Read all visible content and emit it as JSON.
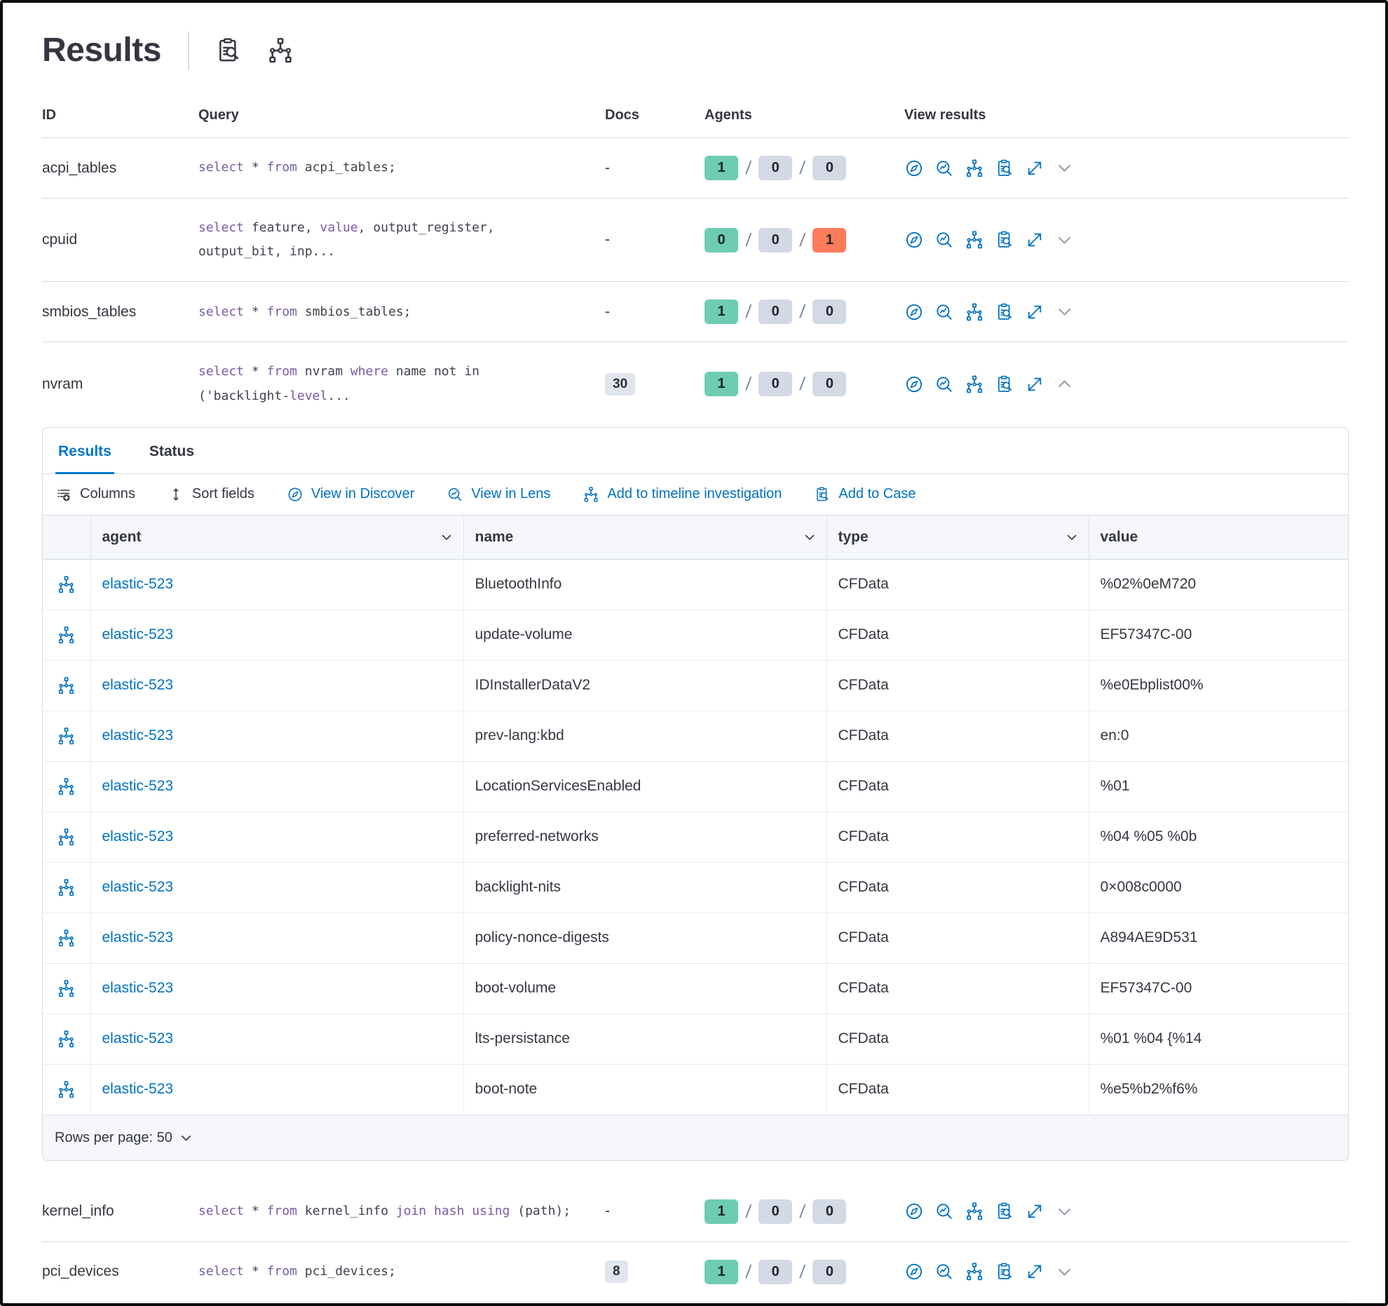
{
  "title": "Results",
  "table": {
    "headers": {
      "id": "ID",
      "query": "Query",
      "docs": "Docs",
      "agents": "Agents",
      "view": "View results"
    },
    "rows": [
      {
        "id": "acpi_tables",
        "docs": "-",
        "docs_is_badge": false,
        "agents": [
          {
            "v": "1",
            "c": "success"
          },
          {
            "v": "0",
            "c": "neutral"
          },
          {
            "v": "0",
            "c": "neutral"
          }
        ],
        "tokens": [
          {
            "k": 1,
            "s": "select"
          },
          {
            "s": " * "
          },
          {
            "k": 1,
            "s": "from"
          },
          {
            "s": " acpi_tables;"
          }
        ]
      },
      {
        "id": "cpuid",
        "docs": "-",
        "docs_is_badge": false,
        "agents": [
          {
            "v": "0",
            "c": "success"
          },
          {
            "v": "0",
            "c": "neutral"
          },
          {
            "v": "1",
            "c": "danger"
          }
        ],
        "tokens": [
          {
            "k": 1,
            "s": "select"
          },
          {
            "s": " feature, "
          },
          {
            "k": 1,
            "s": "value"
          },
          {
            "s": ", output_register,"
          },
          {
            "br": 1
          },
          {
            "s": "output_bit, inp..."
          }
        ]
      },
      {
        "id": "smbios_tables",
        "docs": "-",
        "docs_is_badge": false,
        "agents": [
          {
            "v": "1",
            "c": "success"
          },
          {
            "v": "0",
            "c": "neutral"
          },
          {
            "v": "0",
            "c": "neutral"
          }
        ],
        "tokens": [
          {
            "k": 1,
            "s": "select"
          },
          {
            "s": " * "
          },
          {
            "k": 1,
            "s": "from"
          },
          {
            "s": " smbios_tables;"
          }
        ]
      },
      {
        "id": "nvram",
        "docs": "30",
        "docs_is_badge": true,
        "agents": [
          {
            "v": "1",
            "c": "success"
          },
          {
            "v": "0",
            "c": "neutral"
          },
          {
            "v": "0",
            "c": "neutral"
          }
        ],
        "tokens": [
          {
            "k": 1,
            "s": "select"
          },
          {
            "s": " * "
          },
          {
            "k": 1,
            "s": "from"
          },
          {
            "s": " nvram "
          },
          {
            "k": 1,
            "s": "where"
          },
          {
            "s": " name not in"
          },
          {
            "br": 1
          },
          {
            "s": "('backlight-"
          },
          {
            "k": 1,
            "s": "level"
          },
          {
            "s": "..."
          }
        ]
      },
      {
        "id": "kernel_info",
        "docs": "-",
        "docs_is_badge": false,
        "agents": [
          {
            "v": "1",
            "c": "success"
          },
          {
            "v": "0",
            "c": "neutral"
          },
          {
            "v": "0",
            "c": "neutral"
          }
        ],
        "tokens": [
          {
            "k": 1,
            "s": "select"
          },
          {
            "s": " * "
          },
          {
            "k": 1,
            "s": "from"
          },
          {
            "s": " kernel_info "
          },
          {
            "k": 1,
            "s": "join"
          },
          {
            "s": " "
          },
          {
            "k": 1,
            "s": "hash"
          },
          {
            "s": " "
          },
          {
            "k": 1,
            "s": "using"
          },
          {
            "s": " (path);"
          }
        ]
      },
      {
        "id": "pci_devices",
        "docs": "8",
        "docs_is_badge": true,
        "agents": [
          {
            "v": "1",
            "c": "success"
          },
          {
            "v": "0",
            "c": "neutral"
          },
          {
            "v": "0",
            "c": "neutral"
          }
        ],
        "tokens": [
          {
            "k": 1,
            "s": "select"
          },
          {
            "s": " * "
          },
          {
            "k": 1,
            "s": "from"
          },
          {
            "s": " pci_devices;"
          }
        ]
      }
    ]
  },
  "panel": {
    "tabs": {
      "results": "Results",
      "status": "Status"
    },
    "toolbar": {
      "columns": "Columns",
      "sort": "Sort fields",
      "discover": "View in Discover",
      "lens": "View in Lens",
      "timeline": "Add to timeline investigation",
      "case": "Add to Case"
    },
    "grid": {
      "headers": {
        "agent": "agent",
        "name": "name",
        "type": "type",
        "value": "value"
      },
      "rows": [
        {
          "agent": "elastic-523",
          "name": "BluetoothInfo",
          "type": "CFData",
          "value": "%02%0eM720"
        },
        {
          "agent": "elastic-523",
          "name": "update-volume",
          "type": "CFData",
          "value": "EF57347C-00"
        },
        {
          "agent": "elastic-523",
          "name": "IDInstallerDataV2",
          "type": "CFData",
          "value": "%e0Ebplist00%"
        },
        {
          "agent": "elastic-523",
          "name": "prev-lang:kbd",
          "type": "CFData",
          "value": "en:0"
        },
        {
          "agent": "elastic-523",
          "name": "LocationServicesEnabled",
          "type": "CFData",
          "value": "%01"
        },
        {
          "agent": "elastic-523",
          "name": "preferred-networks",
          "type": "CFData",
          "value": "%04 %05 %0b"
        },
        {
          "agent": "elastic-523",
          "name": "backlight-nits",
          "type": "CFData",
          "value": "0×008c0000"
        },
        {
          "agent": "elastic-523",
          "name": "policy-nonce-digests",
          "type": "CFData",
          "value": "A894AE9D531"
        },
        {
          "agent": "elastic-523",
          "name": "boot-volume",
          "type": "CFData",
          "value": "EF57347C-00"
        },
        {
          "agent": "elastic-523",
          "name": "lts-persistance",
          "type": "CFData",
          "value": "%01 %04 {%14"
        },
        {
          "agent": "elastic-523",
          "name": "boot-note",
          "type": "CFData",
          "value": "%e5%b2%f6%"
        }
      ],
      "rows_per_page": "Rows per page: 50"
    }
  },
  "colors": {
    "primary": "#0071c2",
    "tab_active": "#0077cc",
    "success_badge": "#6dccb1",
    "neutral_badge": "#d3dae6",
    "danger_badge": "#fc7b5b",
    "sql_keyword": "#7a5aa5",
    "text": "#343741",
    "border": "#d3dae6"
  }
}
